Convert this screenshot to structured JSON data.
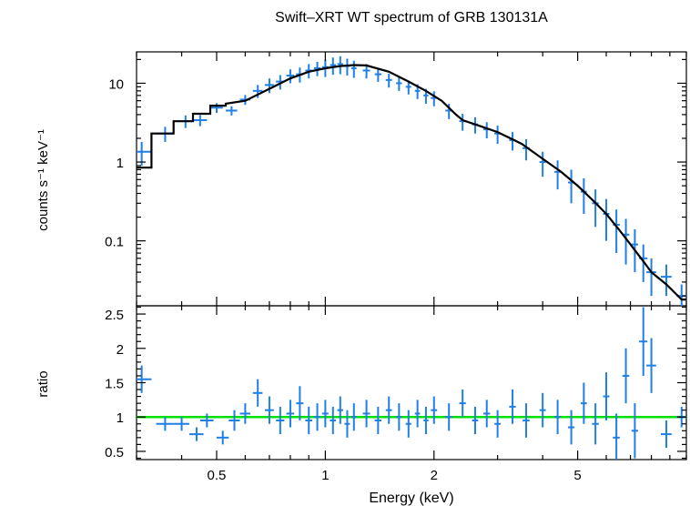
{
  "chart_data": [
    {
      "type": "scatter",
      "panel": "spectrum",
      "title": "Swift–XRT WT spectrum of GRB 130131A",
      "ylabel": "counts s⁻¹ keV⁻¹",
      "xlabel": "",
      "xscale": "log",
      "yscale": "log",
      "xlim": [
        0.3,
        10
      ],
      "ylim": [
        0.015,
        25
      ],
      "ytick_labels": [
        "0.1",
        "1",
        "10"
      ],
      "ytick_values": [
        0.1,
        1,
        10
      ],
      "colors": {
        "data": "#1f7fe6",
        "model": "#000000"
      },
      "series": [
        {
          "name": "",
          "kind": "data",
          "x": [
            0.31,
            0.36,
            0.41,
            0.45,
            0.5,
            0.55,
            0.6,
            0.65,
            0.7,
            0.75,
            0.8,
            0.85,
            0.9,
            0.95,
            1.0,
            1.05,
            1.1,
            1.15,
            1.2,
            1.3,
            1.4,
            1.5,
            1.6,
            1.7,
            1.8,
            1.9,
            2.0,
            2.2,
            2.4,
            2.6,
            2.8,
            3.0,
            3.3,
            3.6,
            4.0,
            4.4,
            4.8,
            5.2,
            5.6,
            6.0,
            6.4,
            6.8,
            7.2,
            7.6,
            8.0,
            8.8,
            9.7
          ],
          "y": [
            1.35,
            2.3,
            3.3,
            3.4,
            4.9,
            4.5,
            6.2,
            8.0,
            9.5,
            10.5,
            12.5,
            13.0,
            14.5,
            15.5,
            16.0,
            17.0,
            17.5,
            16.5,
            15.5,
            14.5,
            13.0,
            11.0,
            10.0,
            9.0,
            8.0,
            7.0,
            6.5,
            4.5,
            3.3,
            3.0,
            2.6,
            2.3,
            1.9,
            1.5,
            1.0,
            0.75,
            0.55,
            0.42,
            0.3,
            0.22,
            0.16,
            0.12,
            0.09,
            0.06,
            0.04,
            0.035,
            0.02
          ],
          "yerr": [
            0.45,
            0.5,
            0.6,
            0.55,
            0.7,
            0.6,
            0.9,
            1.5,
            2.0,
            2.2,
            2.5,
            2.8,
            3.0,
            3.2,
            4.0,
            4.2,
            4.5,
            4.0,
            3.8,
            3.0,
            2.6,
            2.2,
            2.0,
            1.8,
            1.7,
            1.5,
            1.4,
            1.0,
            0.8,
            0.7,
            0.6,
            0.6,
            0.5,
            0.45,
            0.35,
            0.3,
            0.25,
            0.2,
            0.15,
            0.12,
            0.09,
            0.07,
            0.05,
            0.03,
            0.02,
            0.015,
            0.008
          ],
          "xerr": [
            0.02,
            0.02,
            0.02,
            0.02,
            0.02,
            0.02,
            0.02,
            0.02,
            0.02,
            0.02,
            0.02,
            0.02,
            0.02,
            0.02,
            0.02,
            0.02,
            0.02,
            0.02,
            0.02,
            0.03,
            0.03,
            0.03,
            0.03,
            0.03,
            0.03,
            0.03,
            0.04,
            0.05,
            0.05,
            0.05,
            0.06,
            0.06,
            0.07,
            0.08,
            0.08,
            0.09,
            0.1,
            0.1,
            0.12,
            0.12,
            0.14,
            0.15,
            0.15,
            0.2,
            0.25,
            0.3,
            0.3
          ]
        },
        {
          "name": "",
          "kind": "model",
          "x": [
            0.3,
            0.33,
            0.33,
            0.38,
            0.38,
            0.43,
            0.43,
            0.48,
            0.48,
            0.53,
            0.53,
            0.6,
            0.7,
            0.8,
            0.9,
            1.0,
            1.1,
            1.2,
            1.3,
            1.5,
            1.7,
            1.9,
            2.1,
            2.3,
            2.4,
            2.6,
            3.0,
            3.5,
            4.0,
            4.5,
            5.0,
            5.5,
            6.0,
            6.5,
            7.0,
            7.0,
            7.6,
            7.6,
            8.0,
            8.0,
            8.8,
            8.8,
            9.7,
            9.7,
            10.0
          ],
          "y": [
            0.85,
            0.85,
            2.3,
            2.3,
            3.3,
            3.3,
            4.1,
            4.1,
            5.2,
            5.2,
            5.5,
            6.0,
            8.5,
            11.5,
            14.0,
            15.5,
            16.5,
            17.0,
            16.8,
            14.0,
            10.5,
            8.0,
            6.0,
            4.0,
            3.4,
            3.0,
            2.4,
            1.7,
            1.1,
            0.75,
            0.5,
            0.33,
            0.22,
            0.14,
            0.09,
            0.09,
            0.055,
            0.055,
            0.04,
            0.04,
            0.028,
            0.028,
            0.018,
            0.018,
            0.018
          ]
        }
      ]
    },
    {
      "type": "scatter",
      "panel": "ratio",
      "title": "",
      "xlabel": "Energy (keV)",
      "ylabel": "ratio",
      "xscale": "log",
      "yscale": "linear",
      "xlim": [
        0.3,
        10
      ],
      "ylim": [
        0.38,
        2.62
      ],
      "xtick_labels": [
        "0.5",
        "1",
        "2",
        "5"
      ],
      "xtick_values": [
        0.5,
        1,
        2,
        5
      ],
      "ytick_labels": [
        "0.5",
        "1",
        "1.5",
        "2",
        "2.5"
      ],
      "ytick_values": [
        0.5,
        1,
        1.5,
        2,
        2.5
      ],
      "reference_line": 1,
      "colors": {
        "data": "#1f7fe6",
        "reference": "#00e000"
      },
      "series": [
        {
          "name": "",
          "kind": "data",
          "x": [
            0.31,
            0.36,
            0.4,
            0.44,
            0.47,
            0.52,
            0.56,
            0.6,
            0.65,
            0.7,
            0.75,
            0.8,
            0.85,
            0.9,
            0.95,
            1.0,
            1.05,
            1.1,
            1.15,
            1.2,
            1.3,
            1.4,
            1.5,
            1.6,
            1.7,
            1.8,
            1.9,
            2.0,
            2.2,
            2.4,
            2.6,
            2.8,
            3.0,
            3.3,
            3.6,
            4.0,
            4.4,
            4.8,
            5.2,
            5.6,
            6.0,
            6.4,
            6.8,
            7.2,
            7.6,
            8.0,
            8.8,
            9.7
          ],
          "y": [
            1.55,
            0.9,
            0.9,
            0.75,
            0.95,
            0.7,
            0.95,
            1.05,
            1.35,
            1.1,
            0.95,
            1.05,
            1.2,
            0.95,
            1.0,
            1.05,
            0.95,
            1.1,
            0.9,
            1.0,
            1.05,
            0.95,
            1.1,
            1.0,
            0.9,
            1.05,
            0.95,
            1.1,
            1.0,
            1.2,
            0.95,
            1.05,
            0.9,
            1.15,
            0.95,
            1.1,
            1.0,
            0.85,
            1.2,
            0.9,
            1.3,
            0.7,
            1.6,
            0.8,
            2.1,
            1.75,
            0.75,
            1.0
          ],
          "yerr": [
            0.2,
            0.1,
            0.1,
            0.1,
            0.1,
            0.1,
            0.15,
            0.15,
            0.2,
            0.2,
            0.2,
            0.2,
            0.25,
            0.2,
            0.2,
            0.2,
            0.2,
            0.2,
            0.2,
            0.2,
            0.2,
            0.2,
            0.2,
            0.2,
            0.2,
            0.2,
            0.2,
            0.2,
            0.2,
            0.2,
            0.2,
            0.2,
            0.2,
            0.25,
            0.25,
            0.25,
            0.25,
            0.25,
            0.3,
            0.3,
            0.35,
            0.35,
            0.4,
            0.4,
            0.5,
            0.4,
            0.2,
            0.15
          ],
          "xerr": [
            0.02,
            0.02,
            0.02,
            0.02,
            0.02,
            0.02,
            0.02,
            0.02,
            0.02,
            0.02,
            0.02,
            0.02,
            0.02,
            0.02,
            0.02,
            0.02,
            0.02,
            0.02,
            0.02,
            0.02,
            0.03,
            0.03,
            0.03,
            0.03,
            0.03,
            0.03,
            0.03,
            0.04,
            0.05,
            0.05,
            0.05,
            0.06,
            0.06,
            0.07,
            0.08,
            0.08,
            0.09,
            0.1,
            0.1,
            0.12,
            0.12,
            0.14,
            0.15,
            0.15,
            0.2,
            0.25,
            0.3,
            0.3
          ]
        }
      ]
    }
  ]
}
